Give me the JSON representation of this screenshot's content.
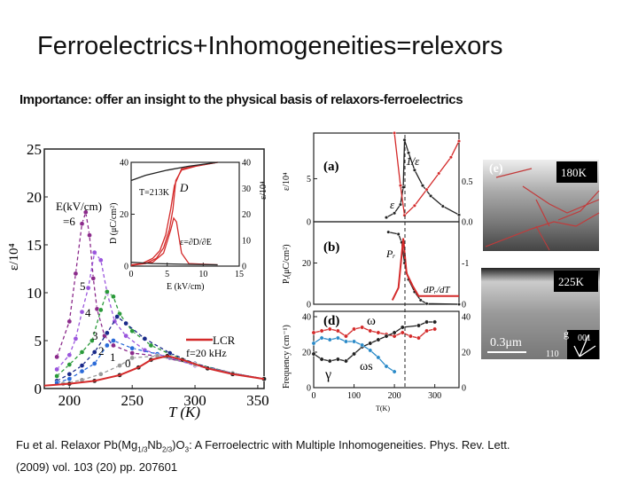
{
  "slide": {
    "title": "Ferroelectrics+Inhomogeneities=relexors",
    "subtitle": "Importance: offer an insight to the physical basis of relaxors-ferroelectrics",
    "citation": {
      "part1": "Fu et al. Relaxor Pb(Mg",
      "sub1": "1/3",
      "part2": "Nb",
      "sub2": "2/3",
      "part3": ")O",
      "sub3": "3",
      "part4": ": A Ferroelectric with Multiple Inhomogeneities. Phys. Rev. Lett.",
      "line2": "(2009) vol. 103 (20) pp. 207601"
    }
  },
  "colors": {
    "red": "#d42a2a",
    "purple": "#8b2a8b",
    "violet": "#9a55dd",
    "green": "#2a9a3a",
    "navy": "#1a2a8a",
    "blue": "#2a6ad8",
    "gray": "#999999",
    "cyan": "#2a8ac8"
  },
  "chart_data": [
    {
      "id": "main",
      "type": "scatter",
      "xlabel": "T (K)",
      "ylabel": "ε/10⁴",
      "xlim": [
        180,
        355
      ],
      "ylim": [
        0,
        25
      ],
      "xticks": [
        "200",
        "250",
        "300",
        "350"
      ],
      "yticks": [
        "0",
        "5",
        "10",
        "15",
        "20",
        "25"
      ],
      "legend_title": "E(kV/cm)",
      "legend_line": "LCR",
      "legend_freq": "f=20 kHz",
      "series_labels": [
        "=6",
        "5",
        "4",
        "3",
        "2",
        "1",
        "0"
      ],
      "series": [
        {
          "name": "6",
          "color": "purple",
          "dashed": true,
          "points": [
            [
              190,
              3.3
            ],
            [
              200,
              7
            ],
            [
              205,
              12
            ],
            [
              210,
              17.2
            ],
            [
              213,
              18.4
            ],
            [
              216,
              16
            ],
            [
              219,
              11.5
            ],
            [
              222,
              8.3
            ],
            [
              228,
              5.5
            ],
            [
              235,
              4.5
            ],
            [
              250,
              3.7
            ],
            [
              270,
              3.4
            ],
            [
              300,
              2.5
            ],
            [
              330,
              1.6
            ],
            [
              355,
              1
            ]
          ]
        },
        {
          "name": "5",
          "color": "violet",
          "dashed": true,
          "points": [
            [
              190,
              2
            ],
            [
              200,
              3.5
            ],
            [
              205,
              5.2
            ],
            [
              210,
              8
            ],
            [
              215,
              10.5
            ],
            [
              220,
              14.2
            ],
            [
              225,
              13.4
            ],
            [
              230,
              10
            ],
            [
              236,
              7
            ],
            [
              245,
              5.5
            ],
            [
              260,
              4
            ],
            [
              280,
              3.2
            ],
            [
              300,
              2.4
            ],
            [
              330,
              1.6
            ],
            [
              355,
              1
            ]
          ]
        },
        {
          "name": "4",
          "color": "green",
          "dashed": true,
          "points": [
            [
              190,
              1.3
            ],
            [
              200,
              2.5
            ],
            [
              210,
              3.8
            ],
            [
              218,
              5
            ],
            [
              225,
              8.2
            ],
            [
              230,
              10.1
            ],
            [
              235,
              9.6
            ],
            [
              240,
              7.8
            ],
            [
              250,
              6
            ],
            [
              265,
              4.5
            ],
            [
              280,
              3.6
            ],
            [
              300,
              2.6
            ],
            [
              330,
              1.6
            ],
            [
              355,
              1
            ]
          ]
        },
        {
          "name": "3",
          "color": "navy",
          "dashed": true,
          "points": [
            [
              190,
              0.8
            ],
            [
              200,
              1.5
            ],
            [
              210,
              2.4
            ],
            [
              220,
              3.8
            ],
            [
              230,
              5.8
            ],
            [
              238,
              7.5
            ],
            [
              245,
              6.8
            ],
            [
              260,
              5.2
            ],
            [
              280,
              3.7
            ],
            [
              300,
              2.6
            ],
            [
              330,
              1.6
            ],
            [
              355,
              1
            ]
          ]
        },
        {
          "name": "2",
          "color": "blue",
          "dashed": true,
          "points": [
            [
              190,
              0.6
            ],
            [
              200,
              1
            ],
            [
              210,
              1.8
            ],
            [
              220,
              2.6
            ],
            [
              230,
              4.5
            ],
            [
              235,
              5
            ],
            [
              250,
              4.2
            ],
            [
              270,
              3.6
            ],
            [
              300,
              2.5
            ],
            [
              330,
              1.6
            ],
            [
              355,
              1
            ]
          ]
        },
        {
          "name": "1",
          "color": "gray",
          "dashed": true,
          "points": [
            [
              195,
              0.5
            ],
            [
              210,
              0.9
            ],
            [
              225,
              1.5
            ],
            [
              240,
              2.4
            ],
            [
              250,
              3.2
            ],
            [
              270,
              3.4
            ],
            [
              300,
              2.5
            ],
            [
              330,
              1.6
            ],
            [
              355,
              1
            ]
          ]
        },
        {
          "name": "0",
          "color": "#222222",
          "dashed": false,
          "points": [
            [
              200,
              0.5
            ],
            [
              220,
              0.8
            ],
            [
              240,
              1.4
            ],
            [
              255,
              2.2
            ],
            [
              265,
              3
            ],
            [
              278,
              3.4
            ],
            [
              290,
              3
            ],
            [
              310,
              2.1
            ],
            [
              330,
              1.5
            ],
            [
              355,
              1
            ]
          ]
        },
        {
          "name": "LCR",
          "color": "red",
          "dashed": false,
          "line_only": true,
          "points": [
            [
              180,
              0.3
            ],
            [
              200,
              0.5
            ],
            [
              220,
              0.8
            ],
            [
              240,
              1.4
            ],
            [
              255,
              2.2
            ],
            [
              265,
              3
            ],
            [
              278,
              3.4
            ],
            [
              290,
              3
            ],
            [
              310,
              2.1
            ],
            [
              330,
              1.5
            ],
            [
              355,
              1
            ]
          ]
        }
      ]
    },
    {
      "id": "inset",
      "type": "line",
      "xlabel": "E (kV/cm)",
      "ylabel": "D (μC/cm²)",
      "ylabel_right": "ε/10⁴",
      "xlim": [
        0,
        15
      ],
      "ylim": [
        0,
        40
      ],
      "xticks": [
        "0",
        "5",
        "10",
        "15"
      ],
      "yticks": [
        "0",
        "20",
        "40"
      ],
      "yticks_right": [
        "0",
        "10",
        "20",
        "30",
        "40"
      ],
      "annotation_T": "T=213K",
      "annotation_D": "D",
      "annotation_eps": "ε=∂D/∂E",
      "series": [
        {
          "name": "D-up",
          "color": "red",
          "points": [
            [
              0,
              0.3
            ],
            [
              2,
              1
            ],
            [
              3.5,
              3
            ],
            [
              4.5,
              7
            ],
            [
              5.3,
              14
            ],
            [
              5.8,
              22
            ],
            [
              6.2,
              33
            ],
            [
              7,
              37
            ],
            [
              9,
              38.5
            ],
            [
              12,
              40
            ]
          ]
        },
        {
          "name": "D-down",
          "color": "red",
          "points": [
            [
              12,
              40
            ],
            [
              9,
              38.6
            ],
            [
              7,
              37.5
            ],
            [
              6,
              31
            ],
            [
              5.5,
              22
            ],
            [
              4.8,
              12
            ],
            [
              4,
              6
            ],
            [
              3,
              3
            ],
            [
              1.5,
              1
            ],
            [
              0,
              0.3
            ]
          ]
        },
        {
          "name": "eps",
          "color": "red",
          "points": [
            [
              0,
              0.5
            ],
            [
              3,
              1.5
            ],
            [
              4.5,
              5
            ],
            [
              5.5,
              14
            ],
            [
              5.9,
              18.5
            ],
            [
              6.3,
              17
            ],
            [
              7,
              5
            ],
            [
              8,
              1
            ],
            [
              12,
              0.5
            ]
          ]
        },
        {
          "name": "D-reference",
          "color": "#222222",
          "points": [
            [
              0,
              33
            ],
            [
              2,
              35
            ],
            [
              5,
              37
            ],
            [
              8,
              38.5
            ],
            [
              12,
              40
            ]
          ]
        },
        {
          "name": "eps-reference",
          "color": "#222222",
          "points": [
            [
              0,
              1.5
            ],
            [
              3,
              1
            ],
            [
              8,
              0.7
            ],
            [
              12,
              0.5
            ]
          ]
        }
      ]
    },
    {
      "id": "panel-a",
      "type": "scatter",
      "label": "(a)",
      "ylabel": "ε/10⁴",
      "xlim": [
        0,
        360
      ],
      "ylim": [
        0,
        10.3
      ],
      "yticks": [
        "0",
        "5"
      ],
      "yticks_right": [
        "0.0",
        "0.5"
      ],
      "label_eps": "ε",
      "label_inv": "1/ε",
      "series": [
        {
          "name": "ε",
          "color": "#222222",
          "points": [
            [
              180,
              0.5
            ],
            [
              200,
              1
            ],
            [
              215,
              2
            ],
            [
              222,
              4
            ],
            [
              225,
              9.5
            ],
            [
              235,
              8
            ],
            [
              250,
              6
            ],
            [
              270,
              4.2
            ],
            [
              290,
              3
            ],
            [
              320,
              1.8
            ],
            [
              360,
              0.8
            ]
          ]
        },
        {
          "name": "1/ε",
          "color": "red",
          "right_axis": true,
          "points": [
            [
              200,
              1.1
            ],
            [
              215,
              0.45
            ],
            [
              225,
              0.08
            ],
            [
              250,
              0.2
            ],
            [
              280,
              0.4
            ],
            [
              310,
              0.6
            ],
            [
              340,
              0.8
            ],
            [
              360,
              1
            ]
          ]
        }
      ]
    },
    {
      "id": "panel-b",
      "type": "scatter",
      "label": "(b)",
      "ylabel": "Pᵣ(μC/cm²)",
      "xlim": [
        0,
        360
      ],
      "ylim": [
        0,
        40
      ],
      "yticks": [
        "0",
        "20"
      ],
      "yticks_right": [
        "0",
        "-1"
      ],
      "label_p": "Pᵣ",
      "label_dp": "dPᵣ/dT",
      "series": [
        {
          "name": "Pr",
          "color": "#222222",
          "points": [
            [
              185,
              35
            ],
            [
              210,
              34
            ],
            [
              218,
              30
            ],
            [
              225,
              20
            ],
            [
              235,
              12
            ],
            [
              250,
              6
            ],
            [
              265,
              2
            ],
            [
              280,
              0.3
            ],
            [
              360,
              0
            ]
          ]
        },
        {
          "name": "dPr/dT",
          "color": "red",
          "line_only": true,
          "points": [
            [
              195,
              2
            ],
            [
              210,
              8
            ],
            [
              222,
              32
            ],
            [
              230,
              15
            ],
            [
              245,
              9
            ],
            [
              260,
              4
            ],
            [
              280,
              4
            ],
            [
              360,
              4
            ]
          ]
        }
      ]
    },
    {
      "id": "panel-d",
      "type": "scatter",
      "label": "(d)",
      "xlabel": "T(K)",
      "ylabel": "Frequency (cm⁻¹)",
      "xlim": [
        0,
        360
      ],
      "ylim": [
        0,
        43
      ],
      "xticks": [
        "0",
        "100",
        "200",
        "300"
      ],
      "yticks": [
        "0",
        "20",
        "40"
      ],
      "yticks_right": [
        "0",
        "20",
        "40"
      ],
      "label_omega": "ω",
      "label_gamma": "γ",
      "label_omegas": "ωs",
      "series": [
        {
          "name": "ω",
          "color": "red",
          "points": [
            [
              0,
              31
            ],
            [
              20,
              32
            ],
            [
              40,
              33
            ],
            [
              60,
              32
            ],
            [
              80,
              29
            ],
            [
              100,
              33
            ],
            [
              120,
              34
            ],
            [
              140,
              32
            ],
            [
              160,
              31
            ],
            [
              180,
              30
            ],
            [
              200,
              29
            ],
            [
              220,
              31
            ],
            [
              240,
              29
            ],
            [
              260,
              28
            ],
            [
              280,
              32
            ],
            [
              300,
              33
            ]
          ]
        },
        {
          "name": "γ",
          "color": "#222222",
          "points": [
            [
              0,
              19
            ],
            [
              20,
              16
            ],
            [
              40,
              15
            ],
            [
              60,
              16
            ],
            [
              80,
              15
            ],
            [
              100,
              19
            ],
            [
              120,
              23
            ],
            [
              140,
              25
            ],
            [
              160,
              27
            ],
            [
              180,
              29
            ],
            [
              200,
              31
            ],
            [
              220,
              34
            ],
            [
              260,
              35
            ],
            [
              280,
              37
            ],
            [
              300,
              37
            ]
          ]
        },
        {
          "name": "ωs",
          "color": "cyan",
          "points": [
            [
              0,
              25
            ],
            [
              20,
              28
            ],
            [
              40,
              27
            ],
            [
              60,
              28
            ],
            [
              80,
              26
            ],
            [
              100,
              26
            ],
            [
              120,
              24
            ],
            [
              140,
              21
            ],
            [
              160,
              17
            ],
            [
              180,
              12
            ],
            [
              200,
              9
            ]
          ]
        }
      ]
    },
    {
      "id": "panel-e",
      "type": "image",
      "label": "(e)",
      "temp_top": "180K",
      "temp_bottom": "225K",
      "scale_bar": "0.3μm",
      "axis_g": "g",
      "axis_001": "001",
      "axis_110": "110"
    }
  ]
}
